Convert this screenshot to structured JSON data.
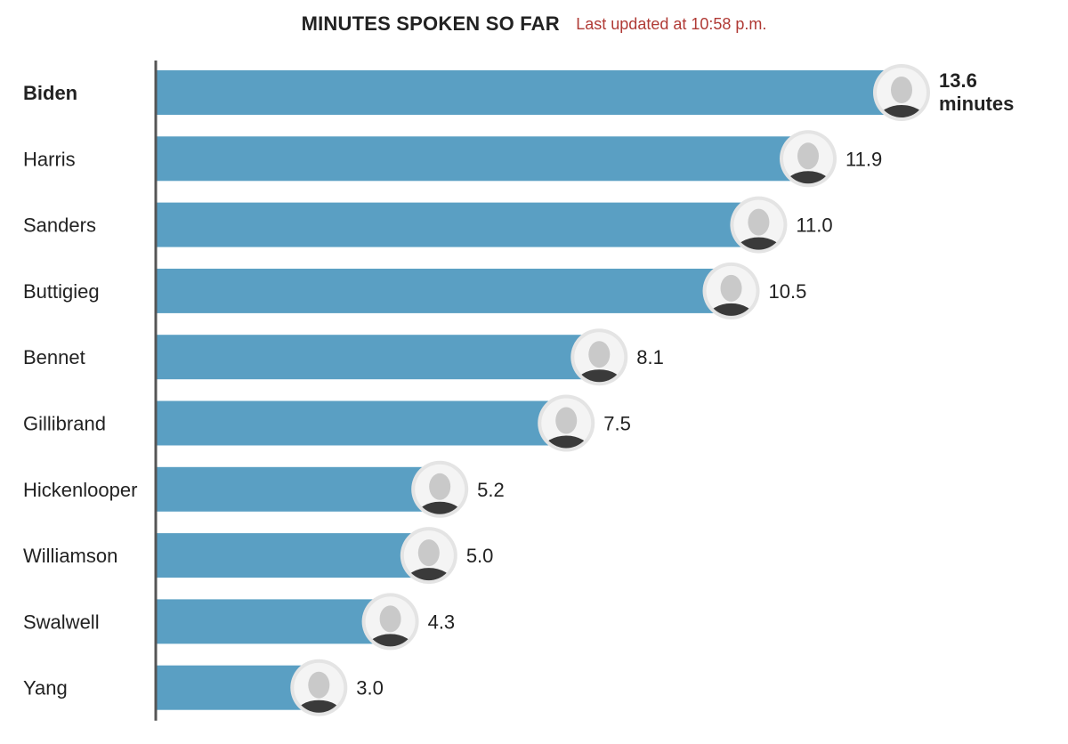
{
  "header": {
    "title": "MINUTES SPOKEN SO FAR",
    "updated": "Last updated at 10:58 p.m."
  },
  "colors": {
    "bar": "#5a9fc3",
    "axis": "#555555",
    "photo_ring": "#e4e4e4",
    "photo_face": "#c9c9c9"
  },
  "chart_data": {
    "type": "bar",
    "orientation": "horizontal",
    "title": "MINUTES SPOKEN SO FAR",
    "subtitle": "Last updated at 10:58 p.m.",
    "xlabel": "",
    "ylabel": "",
    "xlim": [
      0,
      13.6
    ],
    "grid": false,
    "legend": "none",
    "unit": "minutes",
    "categories": [
      "Biden",
      "Harris",
      "Sanders",
      "Buttigieg",
      "Bennet",
      "Gillibrand",
      "Hickenlooper",
      "Williamson",
      "Swalwell",
      "Yang"
    ],
    "values": [
      13.6,
      11.9,
      11.0,
      10.5,
      8.1,
      7.5,
      5.2,
      5.0,
      4.3,
      3.0
    ],
    "value_labels": [
      "13.6",
      "11.9",
      "11.0",
      "10.5",
      "8.1",
      "7.5",
      "5.2",
      "5.0",
      "4.3",
      "3.0"
    ],
    "first_label_unit": "minutes",
    "highlight": "Biden"
  }
}
